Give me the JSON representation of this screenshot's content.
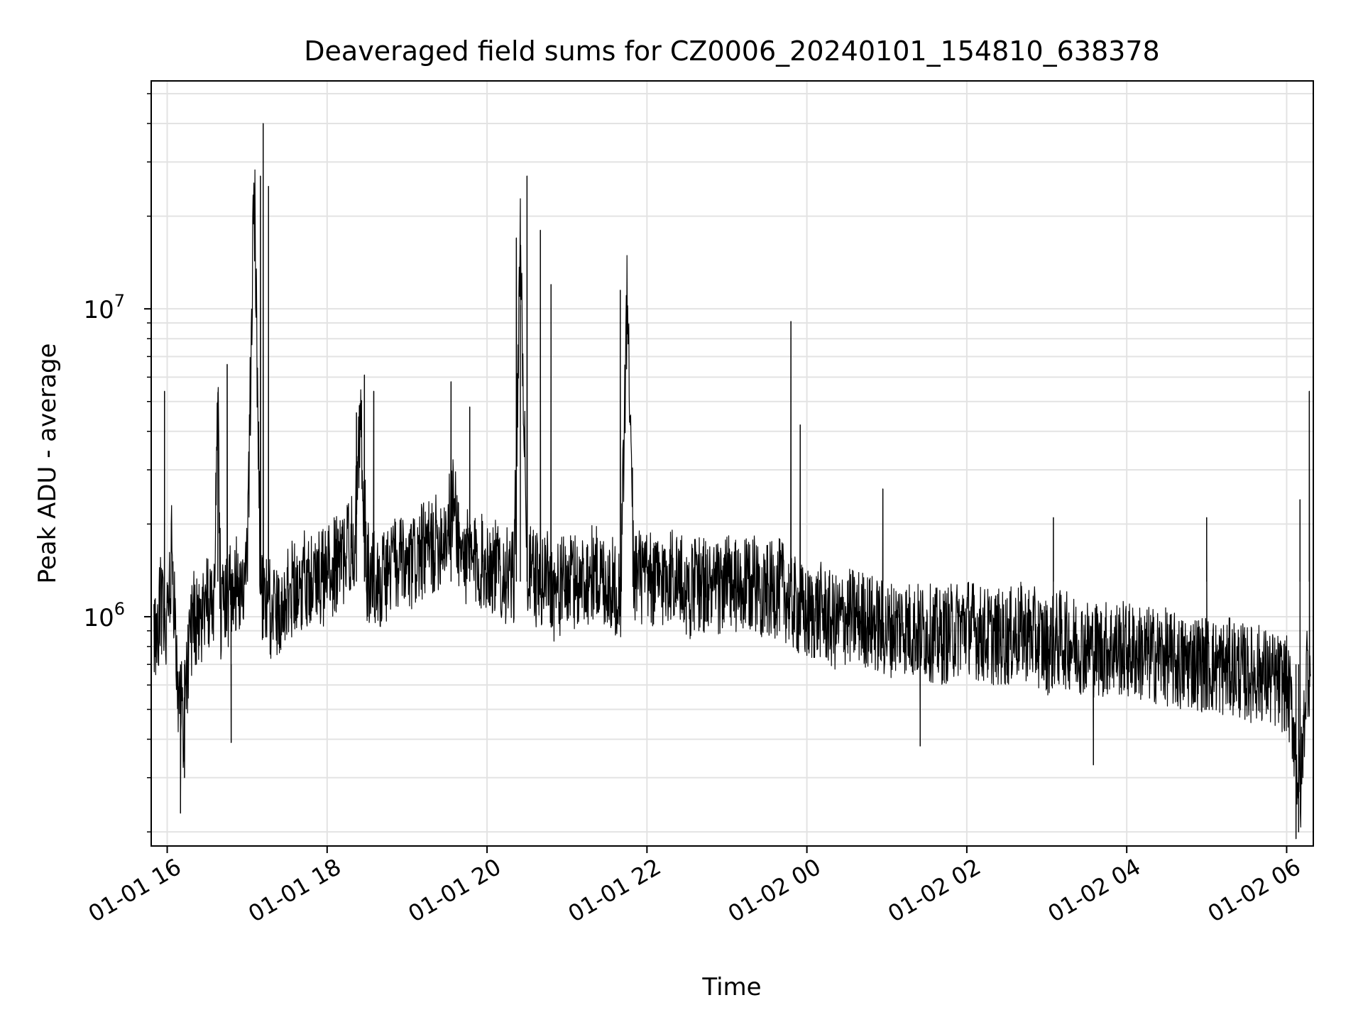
{
  "chart_data": {
    "type": "line",
    "title": "Deaveraged field sums for CZ0006_20240101_154810_638378",
    "xlabel": "Time",
    "ylabel": "Peak ADU - average",
    "xlim": [
      "2024-01-01 15:48",
      "2024-01-02 06:20"
    ],
    "ylim": [
      180000,
      55000000
    ],
    "yscale": "log",
    "grid": true,
    "x_ticks": [
      "01-01 16",
      "01-01 18",
      "01-01 20",
      "01-01 22",
      "01-02 00",
      "01-02 02",
      "01-02 04",
      "01-02 06"
    ],
    "y_ticks": [
      {
        "base": "10",
        "exp": "6",
        "value": 1000000
      },
      {
        "base": "10",
        "exp": "7",
        "value": 10000000
      }
    ],
    "line_color": "#000000",
    "series": [
      {
        "x": [
          "2024-01-01 15:50",
          "2024-01-01 15:55",
          "2024-01-01 16:00",
          "2024-01-01 16:03",
          "2024-01-01 16:08",
          "2024-01-01 16:12",
          "2024-01-01 16:15",
          "2024-01-01 16:20",
          "2024-01-01 16:25",
          "2024-01-01 16:30",
          "2024-01-01 16:35",
          "2024-01-01 16:38",
          "2024-01-01 16:40",
          "2024-01-01 16:45",
          "2024-01-01 16:50",
          "2024-01-01 16:55",
          "2024-01-01 17:00",
          "2024-01-01 17:05",
          "2024-01-01 17:10",
          "2024-01-01 17:15",
          "2024-01-01 17:20",
          "2024-01-01 17:30",
          "2024-01-01 17:40",
          "2024-01-01 17:50",
          "2024-01-01 17:55",
          "2024-01-01 18:00",
          "2024-01-01 18:10",
          "2024-01-01 18:20",
          "2024-01-01 18:25",
          "2024-01-01 18:30",
          "2024-01-01 18:40",
          "2024-01-01 18:50",
          "2024-01-01 19:00",
          "2024-01-01 19:10",
          "2024-01-01 19:20",
          "2024-01-01 19:30",
          "2024-01-01 19:35",
          "2024-01-01 19:40",
          "2024-01-01 19:50",
          "2024-01-01 20:00",
          "2024-01-01 20:10",
          "2024-01-01 20:20",
          "2024-01-01 20:25",
          "2024-01-01 20:30",
          "2024-01-01 20:40",
          "2024-01-01 20:45",
          "2024-01-01 20:50",
          "2024-01-01 21:00",
          "2024-01-01 21:10",
          "2024-01-01 21:20",
          "2024-01-01 21:30",
          "2024-01-01 21:40",
          "2024-01-01 21:45",
          "2024-01-01 21:50",
          "2024-01-01 22:00",
          "2024-01-01 22:10",
          "2024-01-01 22:20",
          "2024-01-01 22:30",
          "2024-01-01 22:40",
          "2024-01-01 22:50",
          "2024-01-01 23:00",
          "2024-01-01 23:10",
          "2024-01-01 23:20",
          "2024-01-01 23:30",
          "2024-01-01 23:40",
          "2024-01-01 23:50",
          "2024-01-02 00:00",
          "2024-01-02 00:10",
          "2024-01-02 00:20",
          "2024-01-02 00:30",
          "2024-01-02 00:40",
          "2024-01-02 00:50",
          "2024-01-02 01:00",
          "2024-01-02 01:10",
          "2024-01-02 01:20",
          "2024-01-02 01:30",
          "2024-01-02 01:40",
          "2024-01-02 01:50",
          "2024-01-02 02:00",
          "2024-01-02 02:10",
          "2024-01-02 02:20",
          "2024-01-02 02:30",
          "2024-01-02 02:40",
          "2024-01-02 02:50",
          "2024-01-02 03:00",
          "2024-01-02 03:10",
          "2024-01-02 03:20",
          "2024-01-02 03:30",
          "2024-01-02 03:40",
          "2024-01-02 03:50",
          "2024-01-02 04:00",
          "2024-01-02 04:10",
          "2024-01-02 04:20",
          "2024-01-02 04:30",
          "2024-01-02 04:40",
          "2024-01-02 04:50",
          "2024-01-02 05:00",
          "2024-01-02 05:10",
          "2024-01-02 05:20",
          "2024-01-02 05:30",
          "2024-01-02 05:40",
          "2024-01-02 05:50",
          "2024-01-02 06:00",
          "2024-01-02 06:05",
          "2024-01-02 06:10",
          "2024-01-02 06:15",
          "2024-01-02 06:18"
        ],
        "values": [
          800000,
          1100000,
          900000,
          1600000,
          600000,
          450000,
          700000,
          1000000,
          900000,
          1100000,
          1200000,
          5000000,
          1000000,
          1100000,
          1300000,
          1200000,
          1400000,
          28000000,
          1200000,
          1100000,
          1000000,
          1200000,
          1300000,
          1400000,
          1300000,
          1400000,
          1500000,
          1800000,
          4200000,
          1400000,
          1300000,
          1500000,
          1400000,
          1600000,
          1700000,
          1900000,
          2400000,
          1600000,
          1500000,
          1500000,
          1400000,
          1300000,
          17000000,
          1400000,
          1300000,
          1400000,
          1200000,
          1300000,
          1300000,
          1400000,
          1300000,
          1200000,
          11000000,
          1400000,
          1300000,
          1300000,
          1400000,
          1200000,
          1300000,
          1200000,
          1300000,
          1200000,
          1300000,
          1200000,
          1250000,
          1100000,
          1000000,
          1050000,
          950000,
          1000000,
          1000000,
          950000,
          900000,
          950000,
          900000,
          900000,
          850000,
          900000,
          950000,
          880000,
          860000,
          850000,
          900000,
          870000,
          800000,
          850000,
          820000,
          800000,
          780000,
          800000,
          780000,
          760000,
          750000,
          740000,
          700000,
          720000,
          700000,
          680000,
          690000,
          650000,
          660000,
          620000,
          600000,
          450000,
          250000,
          700000,
          650000
        ]
      }
    ],
    "spikes": [
      {
        "x": "2024-01-01 15:58",
        "value": 5400000
      },
      {
        "x": "2024-01-01 16:38",
        "value": 5000000
      },
      {
        "x": "2024-01-01 16:45",
        "value": 6600000
      },
      {
        "x": "2024-01-01 17:10",
        "value": 27000000
      },
      {
        "x": "2024-01-01 17:12",
        "value": 40000000
      },
      {
        "x": "2024-01-01 17:16",
        "value": 25000000
      },
      {
        "x": "2024-01-01 18:22",
        "value": 4600000
      },
      {
        "x": "2024-01-01 18:28",
        "value": 6100000
      },
      {
        "x": "2024-01-01 18:35",
        "value": 5400000
      },
      {
        "x": "2024-01-01 19:33",
        "value": 5800000
      },
      {
        "x": "2024-01-01 19:47",
        "value": 4800000
      },
      {
        "x": "2024-01-01 20:22",
        "value": 17000000
      },
      {
        "x": "2024-01-01 20:25",
        "value": 10300000
      },
      {
        "x": "2024-01-01 20:30",
        "value": 27000000
      },
      {
        "x": "2024-01-01 20:40",
        "value": 18000000
      },
      {
        "x": "2024-01-01 20:48",
        "value": 12000000
      },
      {
        "x": "2024-01-01 21:40",
        "value": 11500000
      },
      {
        "x": "2024-01-01 23:48",
        "value": 9100000
      },
      {
        "x": "2024-01-01 23:55",
        "value": 4200000
      },
      {
        "x": "2024-01-02 00:57",
        "value": 2600000
      },
      {
        "x": "2024-01-02 03:05",
        "value": 2100000
      },
      {
        "x": "2024-01-02 05:00",
        "value": 2100000
      },
      {
        "x": "2024-01-02 06:10",
        "value": 2400000
      },
      {
        "x": "2024-01-02 06:17",
        "value": 5400000
      }
    ],
    "dips": [
      {
        "x": "2024-01-01 16:10",
        "value": 230000
      },
      {
        "x": "2024-01-01 16:13",
        "value": 300000
      },
      {
        "x": "2024-01-01 16:48",
        "value": 390000
      },
      {
        "x": "2024-01-02 01:25",
        "value": 380000
      },
      {
        "x": "2024-01-02 03:35",
        "value": 330000
      },
      {
        "x": "2024-01-02 06:07",
        "value": 190000
      },
      {
        "x": "2024-01-02 06:09",
        "value": 200000
      }
    ]
  }
}
